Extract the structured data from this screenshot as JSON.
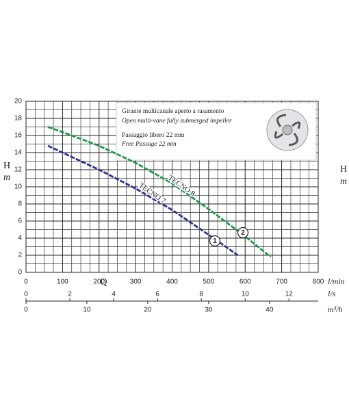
{
  "chart_data": {
    "type": "line",
    "x_label": "Q",
    "x_unit": "l/min",
    "y_label": "H",
    "y_unit": "m",
    "xlim": [
      0,
      800
    ],
    "xticks": [
      0,
      100,
      200,
      300,
      400,
      500,
      600,
      700,
      800
    ],
    "ylim": [
      0,
      20
    ],
    "yticks": [
      0,
      2,
      4,
      6,
      8,
      10,
      12,
      14,
      16,
      18,
      20
    ],
    "grid": true,
    "minor_grid_step": {
      "x": 25,
      "y": 1
    },
    "secondary_x_axes": [
      {
        "unit": "l/s",
        "lim": [
          0,
          13.333
        ],
        "ticks": [
          0,
          2,
          4,
          6,
          8,
          10,
          12
        ]
      },
      {
        "unit": "m³/h",
        "lim": [
          0,
          48
        ],
        "ticks": [
          0,
          10,
          20,
          30,
          40
        ]
      }
    ],
    "series": [
      {
        "name": "TECNO 7",
        "marker": "1",
        "color": "#2e3192",
        "x": [
          60,
          100,
          200,
          300,
          400,
          500,
          580
        ],
        "values": [
          14.8,
          14.0,
          12.0,
          9.8,
          7.3,
          4.4,
          2.0
        ]
      },
      {
        "name": "TECNO 8",
        "marker": "2",
        "color": "#1a9a4a",
        "x": [
          60,
          100,
          200,
          300,
          400,
          500,
          600,
          670
        ],
        "values": [
          17.0,
          16.4,
          14.8,
          12.8,
          10.4,
          7.4,
          4.2,
          1.8
        ]
      }
    ],
    "info_box": [
      "Girante multicanale aperto a rasamento",
      "Open multi-vane fully submerged impeller",
      "Passaggio libero 22 mm",
      "Free Passage 22 mm"
    ]
  }
}
